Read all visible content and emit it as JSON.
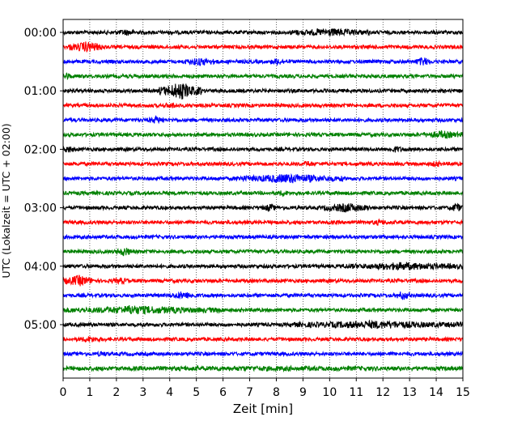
{
  "chart_data": {
    "type": "line",
    "xlabel": "Zeit  [min]",
    "ylabel": "UTC (Lokalzeit = UTC + 02:00)",
    "xlim": [
      0,
      15
    ],
    "x_ticks": [
      "0",
      "1",
      "2",
      "3",
      "4",
      "5",
      "6",
      "7",
      "8",
      "9",
      "10",
      "11",
      "12",
      "13",
      "14",
      "15"
    ],
    "y_ticks": [
      "00:00",
      "01:00",
      "02:00",
      "03:00",
      "04:00",
      "05:00"
    ],
    "grid": "vertical dotted lines at each minute",
    "trace_colors": [
      "#000000",
      "#ff0000",
      "#0000ff",
      "#008000"
    ],
    "traces_per_hour": 4,
    "trace_count": 24
  }
}
